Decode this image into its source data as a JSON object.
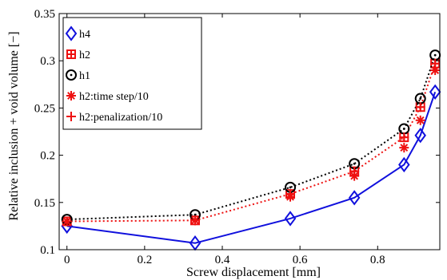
{
  "chart_data": {
    "type": "line",
    "xlabel": "Screw displacement [mm]",
    "ylabel": "Relative inclusion + void volume [−]",
    "xlim": [
      -0.02,
      0.96
    ],
    "ylim": [
      0.1,
      0.35
    ],
    "x_ticks": [
      "0",
      "0.2",
      "0.4",
      "0.6",
      "0.8"
    ],
    "y_ticks": [
      "0.1",
      "0.15",
      "0.2",
      "0.25",
      "0.3",
      "0.35"
    ],
    "x_tick_values": [
      0,
      0.2,
      0.4,
      0.6,
      0.8
    ],
    "y_tick_values": [
      0.1,
      0.15,
      0.2,
      0.25,
      0.3,
      0.35
    ],
    "grid": false,
    "legend_position": "top-left",
    "series": [
      {
        "name": "h4",
        "color": "#1010dd",
        "line_style": "solid",
        "marker": "diamond",
        "x": [
          0,
          0.33,
          0.575,
          0.74,
          0.868,
          0.91,
          0.948
        ],
        "y": [
          0.125,
          0.107,
          0.133,
          0.155,
          0.19,
          0.221,
          0.267
        ]
      },
      {
        "name": "h2",
        "color": "#ee1111",
        "line_style": "dotted",
        "marker": "square-plus",
        "x": [
          0,
          0.33,
          0.575,
          0.74,
          0.868,
          0.91,
          0.948
        ],
        "y": [
          0.13,
          0.131,
          0.159,
          0.183,
          0.219,
          0.251,
          0.297
        ]
      },
      {
        "name": "h1",
        "color": "#000000",
        "line_style": "dotted",
        "marker": "circle-dot",
        "x": [
          0,
          0.33,
          0.575,
          0.74,
          0.868,
          0.91,
          0.948
        ],
        "y": [
          0.132,
          0.137,
          0.166,
          0.191,
          0.228,
          0.26,
          0.306
        ]
      },
      {
        "name": "h2:time step/10",
        "color": "#ee1111",
        "line_style": "none",
        "marker": "asterisk",
        "x": [
          0,
          0.33,
          0.575,
          0.74,
          0.868,
          0.91,
          0.948
        ],
        "y": [
          0.13,
          0.131,
          0.156,
          0.178,
          0.208,
          0.237,
          0.29
        ]
      },
      {
        "name": "h2:penalization/10",
        "color": "#ee1111",
        "line_style": "none",
        "marker": "plus",
        "x": [
          0,
          0.33,
          0.575,
          0.74,
          0.868,
          0.91,
          0.948
        ],
        "y": [
          0.13,
          0.131,
          0.159,
          0.183,
          0.219,
          0.251,
          0.297
        ]
      }
    ]
  }
}
